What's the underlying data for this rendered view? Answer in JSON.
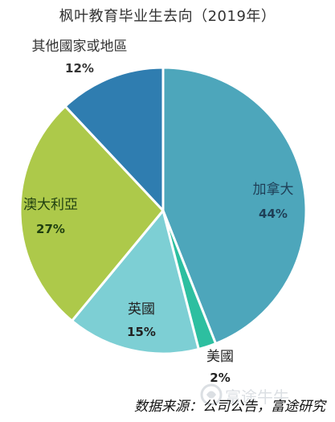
{
  "chart_data": {
    "type": "pie",
    "title": "枫叶教育毕业生去向（2019年）",
    "slices": [
      {
        "label": "加拿大",
        "value": 44,
        "value_label": "44%",
        "color": "#4da6bb"
      },
      {
        "label": "美國",
        "value": 2,
        "value_label": "2%",
        "color": "#2dbfa0"
      },
      {
        "label": "英國",
        "value": 15,
        "value_label": "15%",
        "color": "#7dcfd4"
      },
      {
        "label": "澳大利亞",
        "value": 27,
        "value_label": "27%",
        "color": "#adc94a"
      },
      {
        "label": "其他國家或地區",
        "value": 12,
        "value_label": "12%",
        "color": "#2f7db0"
      }
    ],
    "start": "12 o'clock",
    "direction": "clockwise",
    "legend": "none"
  },
  "source": "数据来源：公司公告，富途研究",
  "watermark": "富途牛牛"
}
